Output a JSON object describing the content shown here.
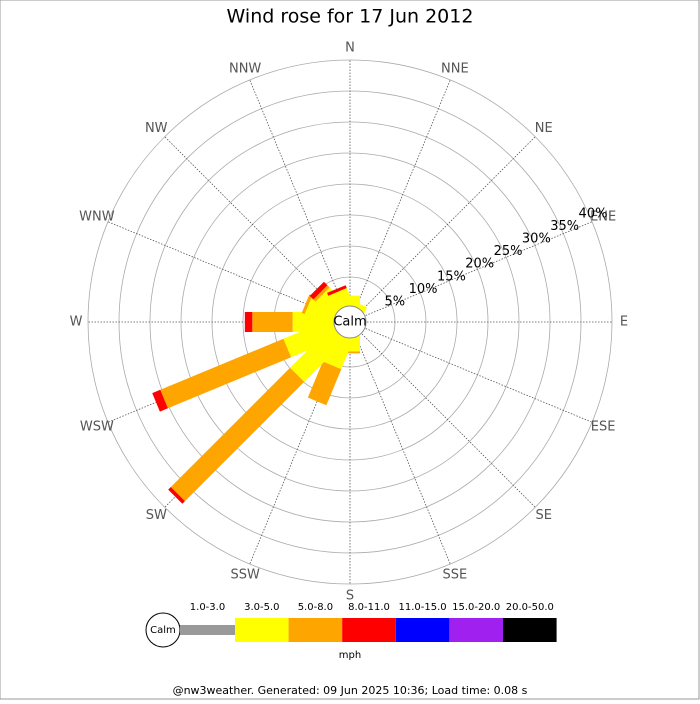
{
  "chart_data": {
    "type": "windrose",
    "title": "Wind rose for 17 Jun 2012",
    "categories": [
      "N",
      "NNE",
      "NE",
      "ENE",
      "E",
      "ESE",
      "SE",
      "SSE",
      "S",
      "SSW",
      "SW",
      "WSW",
      "W",
      "WNW",
      "NW",
      "NNW"
    ],
    "series": [
      {
        "name": "1.0-3.0",
        "color": "#999999",
        "values": [
          0,
          0,
          0,
          0,
          0,
          0,
          0,
          0,
          0,
          0,
          0,
          0,
          0,
          0,
          0,
          0
        ]
      },
      {
        "name": "3.0-5.0",
        "color": "#ffff00",
        "values": [
          2,
          1,
          0,
          0,
          0,
          0,
          0,
          0,
          2.5,
          5.3,
          9.8,
          8.7,
          7,
          5,
          4,
          3
        ]
      },
      {
        "name": "5.0-8.0",
        "color": "#ffa500",
        "values": [
          0,
          0,
          0,
          0,
          0,
          0,
          0,
          0,
          0.3,
          6.3,
          27.2,
          21.5,
          6.5,
          0.5,
          0.5,
          0
        ]
      },
      {
        "name": "8.0-11.0",
        "color": "#ff0000",
        "values": [
          0,
          0,
          0,
          0,
          0,
          0,
          0,
          0,
          0,
          0,
          0.6,
          1.4,
          1.2,
          0,
          0.8,
          0.5
        ]
      },
      {
        "name": "11.0-15.0",
        "color": "#0000ff",
        "values": [
          0,
          0,
          0,
          0,
          0,
          0,
          0,
          0,
          0,
          0,
          0,
          0,
          0,
          0,
          0,
          0
        ]
      },
      {
        "name": "15.0-20.0",
        "color": "#a020f0",
        "values": [
          0,
          0,
          0,
          0,
          0,
          0,
          0,
          0,
          0,
          0,
          0,
          0,
          0,
          0,
          0,
          0
        ]
      },
      {
        "name": "20.0-50.0",
        "color": "#000000",
        "values": [
          0,
          0,
          0,
          0,
          0,
          0,
          0,
          0,
          0,
          0,
          0,
          0,
          0,
          0,
          0,
          0
        ]
      }
    ],
    "rlim": [
      0,
      40
    ],
    "rticks": [
      {
        "value": 5,
        "label": "5%"
      },
      {
        "value": 10,
        "label": "10%"
      },
      {
        "value": 15,
        "label": "15%"
      },
      {
        "value": 20,
        "label": "20%"
      },
      {
        "value": 25,
        "label": "25%"
      },
      {
        "value": 30,
        "label": "30%"
      },
      {
        "value": 35,
        "label": "35%"
      },
      {
        "value": 40,
        "label": "40%"
      }
    ],
    "calm_label": "Calm",
    "unit": "mph",
    "footer": "@nw3weather. Generated: 09 Jun 2025 10:36; Load time: 0.08 s"
  }
}
